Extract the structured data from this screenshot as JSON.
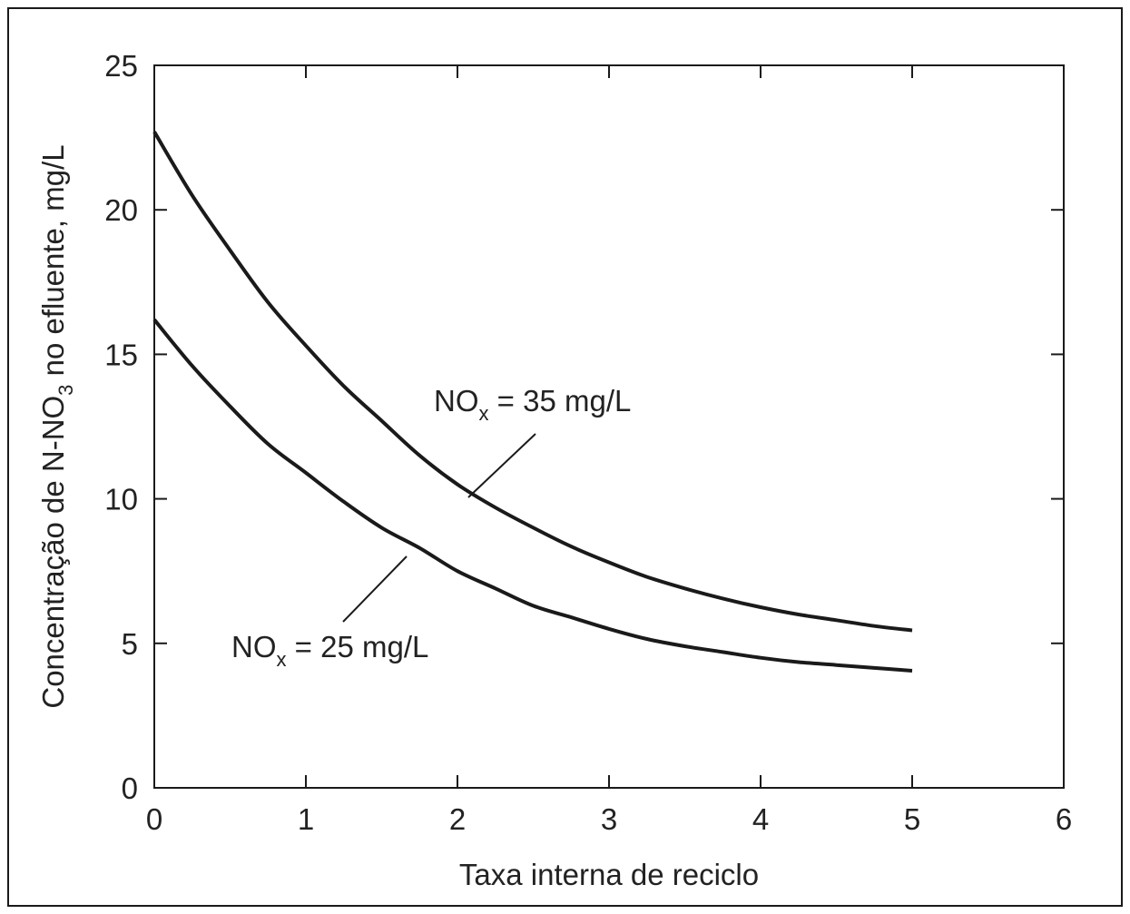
{
  "chart_data": {
    "type": "line",
    "title": "",
    "xlabel": "Taxa interna de reciclo",
    "ylabel": {
      "before": "Concentração de N-NO",
      "sub": "3",
      "after": " no efluente, mg/L"
    },
    "xlim": [
      0,
      6
    ],
    "ylim": [
      0,
      25
    ],
    "x_ticks": [
      "0",
      "1",
      "2",
      "3",
      "4",
      "5",
      "6"
    ],
    "y_ticks": [
      "0",
      "5",
      "10",
      "15",
      "20",
      "25"
    ],
    "grid": false,
    "legend": "none",
    "line_color": "#1a1a1a",
    "series": [
      {
        "label": {
          "main": "NO",
          "sub": "x",
          "rest": " = 35 mg/L"
        },
        "x": [
          0,
          0.25,
          0.5,
          0.75,
          1,
          1.25,
          1.5,
          1.75,
          2,
          2.25,
          2.5,
          2.75,
          3,
          3.25,
          3.5,
          3.75,
          4,
          4.25,
          4.5,
          4.75,
          5
        ],
        "y": [
          22.7,
          20.5,
          18.6,
          16.8,
          15.3,
          13.9,
          12.7,
          11.5,
          10.5,
          9.7,
          9.0,
          8.35,
          7.8,
          7.3,
          6.9,
          6.55,
          6.25,
          6.0,
          5.8,
          5.6,
          5.45
        ]
      },
      {
        "label": {
          "main": "NO",
          "sub": "x",
          "rest": " = 25 mg/L"
        },
        "x": [
          0,
          0.25,
          0.5,
          0.75,
          1,
          1.25,
          1.5,
          1.75,
          2,
          2.25,
          2.5,
          2.75,
          3,
          3.25,
          3.5,
          3.75,
          4,
          4.25,
          4.5,
          4.75,
          5
        ],
        "y": [
          16.2,
          14.6,
          13.2,
          11.9,
          10.9,
          9.9,
          9.0,
          8.3,
          7.5,
          6.9,
          6.3,
          5.9,
          5.5,
          5.15,
          4.9,
          4.7,
          4.5,
          4.35,
          4.25,
          4.15,
          4.05
        ]
      }
    ]
  }
}
